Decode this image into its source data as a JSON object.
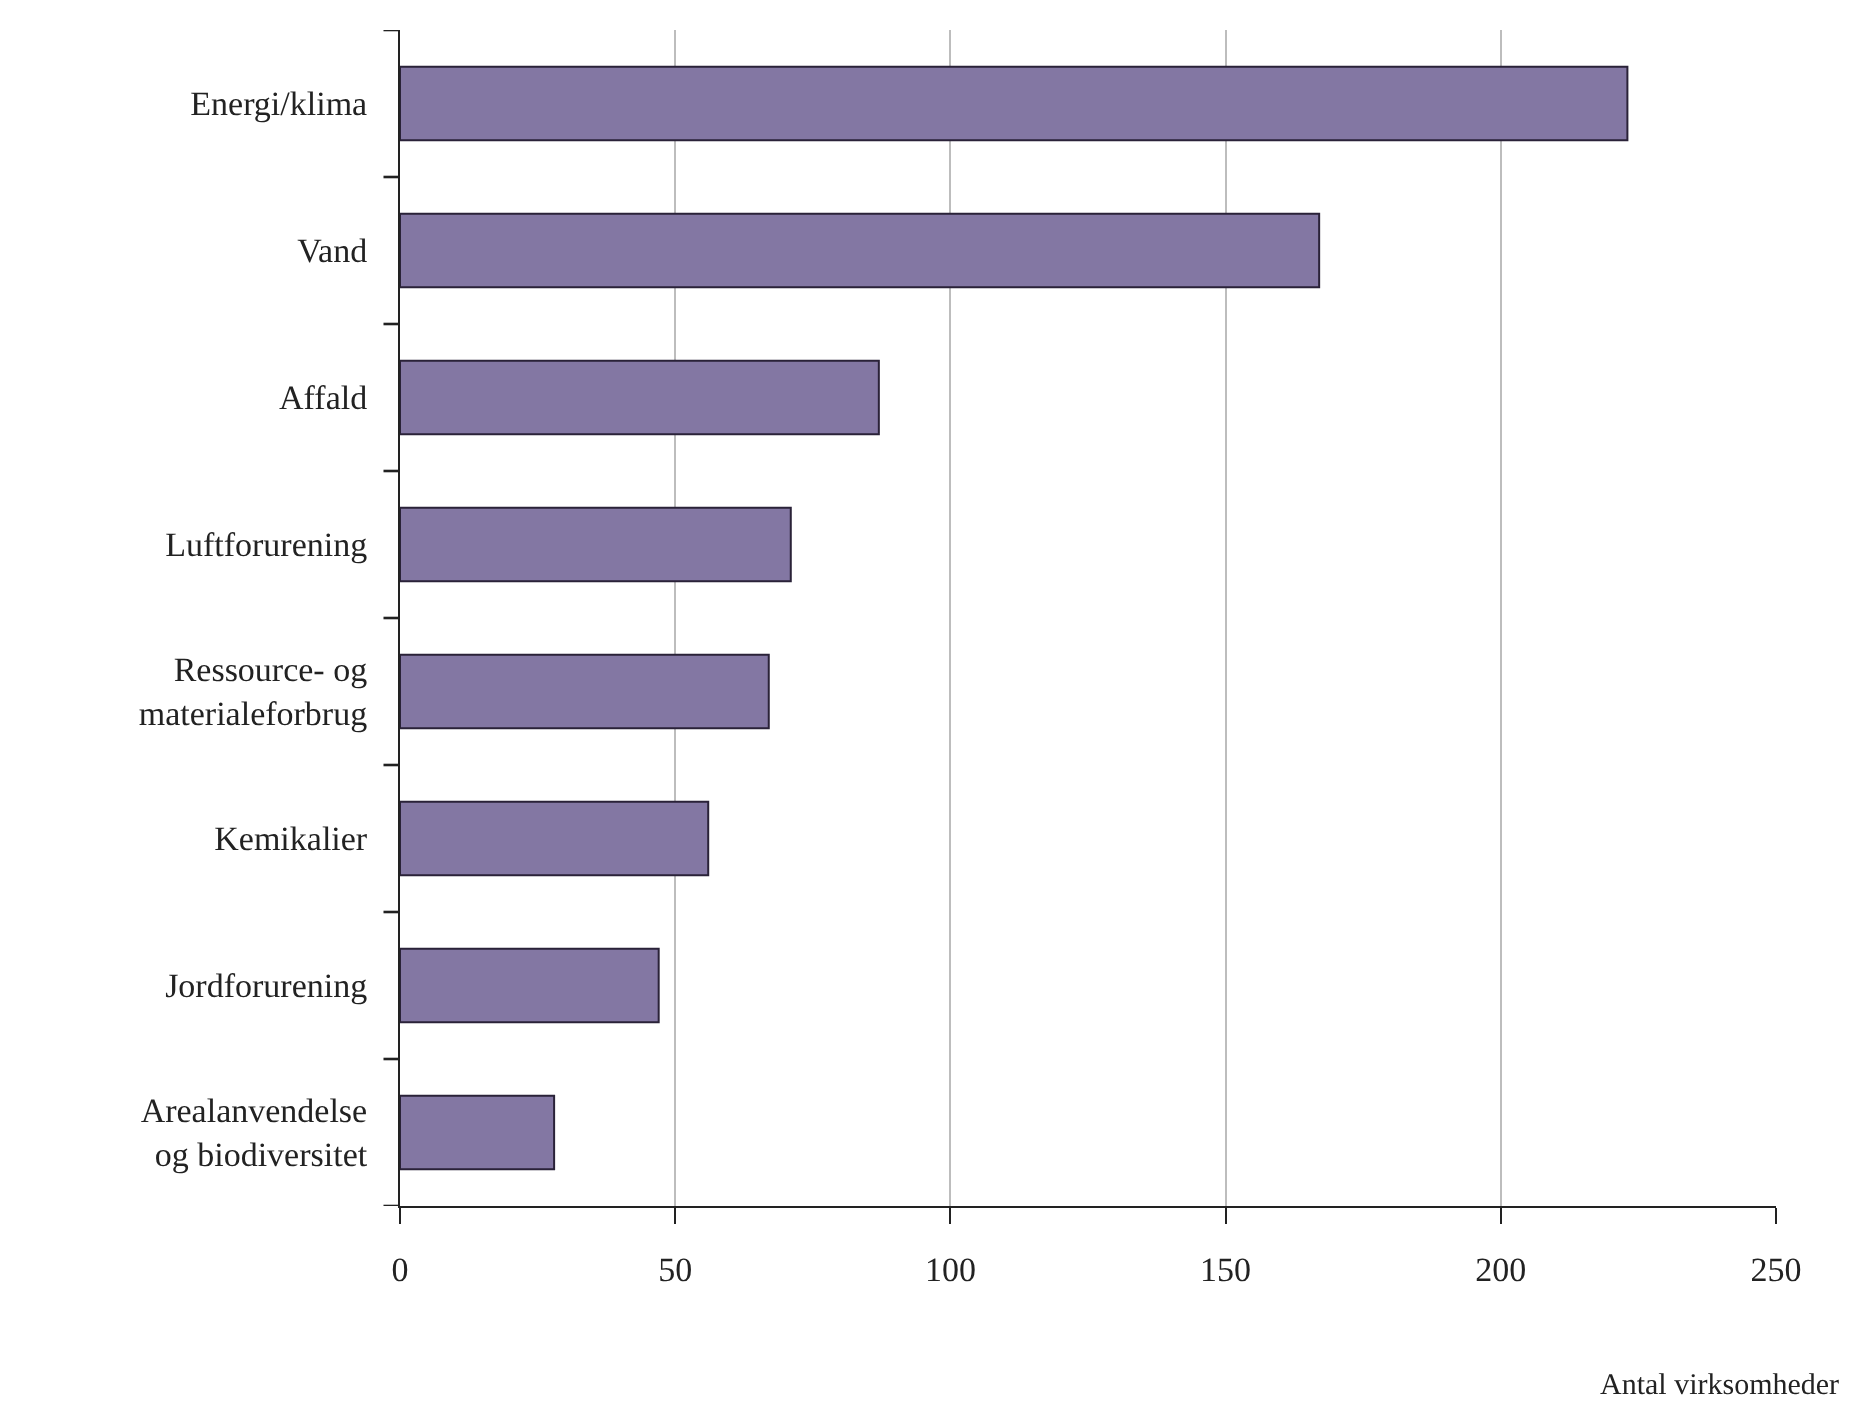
{
  "chart_data": {
    "type": "bar",
    "orientation": "horizontal",
    "xlabel": "Antal virksomheder",
    "categories": [
      "Energi/klima",
      "Vand",
      "Affald",
      "Luftforurening",
      "Ressource- og\nmaterialeforbrug",
      "Kemikalier",
      "Jordforurening",
      "Arealanvendelse\nog biodiversitet"
    ],
    "values": [
      223,
      167,
      87,
      71,
      67,
      56,
      47,
      28
    ],
    "color": "#8377a3",
    "xlim": [
      0,
      250
    ],
    "xticks": [
      0,
      50,
      100,
      150,
      200,
      250
    ],
    "grid": "x"
  }
}
